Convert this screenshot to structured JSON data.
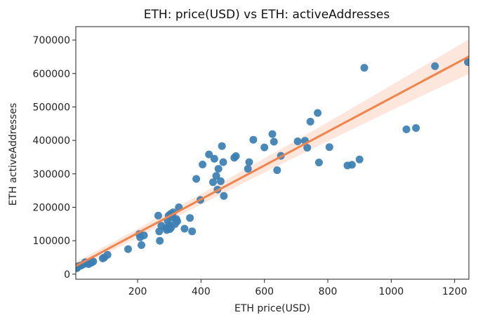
{
  "chart_data": {
    "type": "scatter",
    "title": "ETH: price(USD) vs ETH: activeAddresses",
    "xlabel": "ETH price(USD)",
    "ylabel": "ETH activeAddresses",
    "xlim": [
      5,
      1245
    ],
    "ylim": [
      -15000,
      740000
    ],
    "xticks": [
      200,
      400,
      600,
      800,
      1000,
      1200
    ],
    "yticks": [
      0,
      100000,
      200000,
      300000,
      400000,
      500000,
      600000,
      700000
    ],
    "grid": false,
    "point_color": "#3a7fb4",
    "line_color": "#f2844a",
    "band_color": "#fbd6c3",
    "regression": {
      "slope": 505,
      "intercept": 22000,
      "ci_at_xmin": 12000,
      "ci_at_xmax": 52000
    },
    "points": [
      [
        8,
        18000
      ],
      [
        10,
        20000
      ],
      [
        12,
        22000
      ],
      [
        14,
        24000
      ],
      [
        18,
        25000
      ],
      [
        22,
        26000
      ],
      [
        30,
        30000
      ],
      [
        35,
        36000
      ],
      [
        45,
        30000
      ],
      [
        50,
        33000
      ],
      [
        55,
        35000
      ],
      [
        60,
        38000
      ],
      [
        90,
        47000
      ],
      [
        95,
        50000
      ],
      [
        105,
        58000
      ],
      [
        170,
        75000
      ],
      [
        205,
        120000
      ],
      [
        208,
        110000
      ],
      [
        212,
        87000
      ],
      [
        220,
        116000
      ],
      [
        265,
        175000
      ],
      [
        268,
        128000
      ],
      [
        270,
        100000
      ],
      [
        275,
        145000
      ],
      [
        290,
        138000
      ],
      [
        292,
        132000
      ],
      [
        295,
        160000
      ],
      [
        298,
        175000
      ],
      [
        300,
        147000
      ],
      [
        302,
        135000
      ],
      [
        304,
        180000
      ],
      [
        306,
        140000
      ],
      [
        310,
        170000
      ],
      [
        312,
        185000
      ],
      [
        318,
        150000
      ],
      [
        322,
        165000
      ],
      [
        325,
        158000
      ],
      [
        330,
        200000
      ],
      [
        348,
        136000
      ],
      [
        365,
        168000
      ],
      [
        372,
        128000
      ],
      [
        385,
        285000
      ],
      [
        398,
        222000
      ],
      [
        405,
        328000
      ],
      [
        425,
        358000
      ],
      [
        438,
        275000
      ],
      [
        442,
        345000
      ],
      [
        448,
        294000
      ],
      [
        452,
        253000
      ],
      [
        455,
        315000
      ],
      [
        462,
        278000
      ],
      [
        466,
        383000
      ],
      [
        470,
        335000
      ],
      [
        472,
        234000
      ],
      [
        505,
        348000
      ],
      [
        510,
        353000
      ],
      [
        548,
        315000
      ],
      [
        552,
        335000
      ],
      [
        565,
        402000
      ],
      [
        600,
        379000
      ],
      [
        625,
        419000
      ],
      [
        630,
        396000
      ],
      [
        640,
        311000
      ],
      [
        652,
        354000
      ],
      [
        705,
        397000
      ],
      [
        728,
        399000
      ],
      [
        735,
        378000
      ],
      [
        745,
        456000
      ],
      [
        768,
        482000
      ],
      [
        772,
        334000
      ],
      [
        805,
        380000
      ],
      [
        862,
        325000
      ],
      [
        876,
        327000
      ],
      [
        900,
        343000
      ],
      [
        915,
        617000
      ],
      [
        1048,
        433000
      ],
      [
        1078,
        437000
      ],
      [
        1138,
        622000
      ],
      [
        1242,
        634000
      ]
    ]
  }
}
